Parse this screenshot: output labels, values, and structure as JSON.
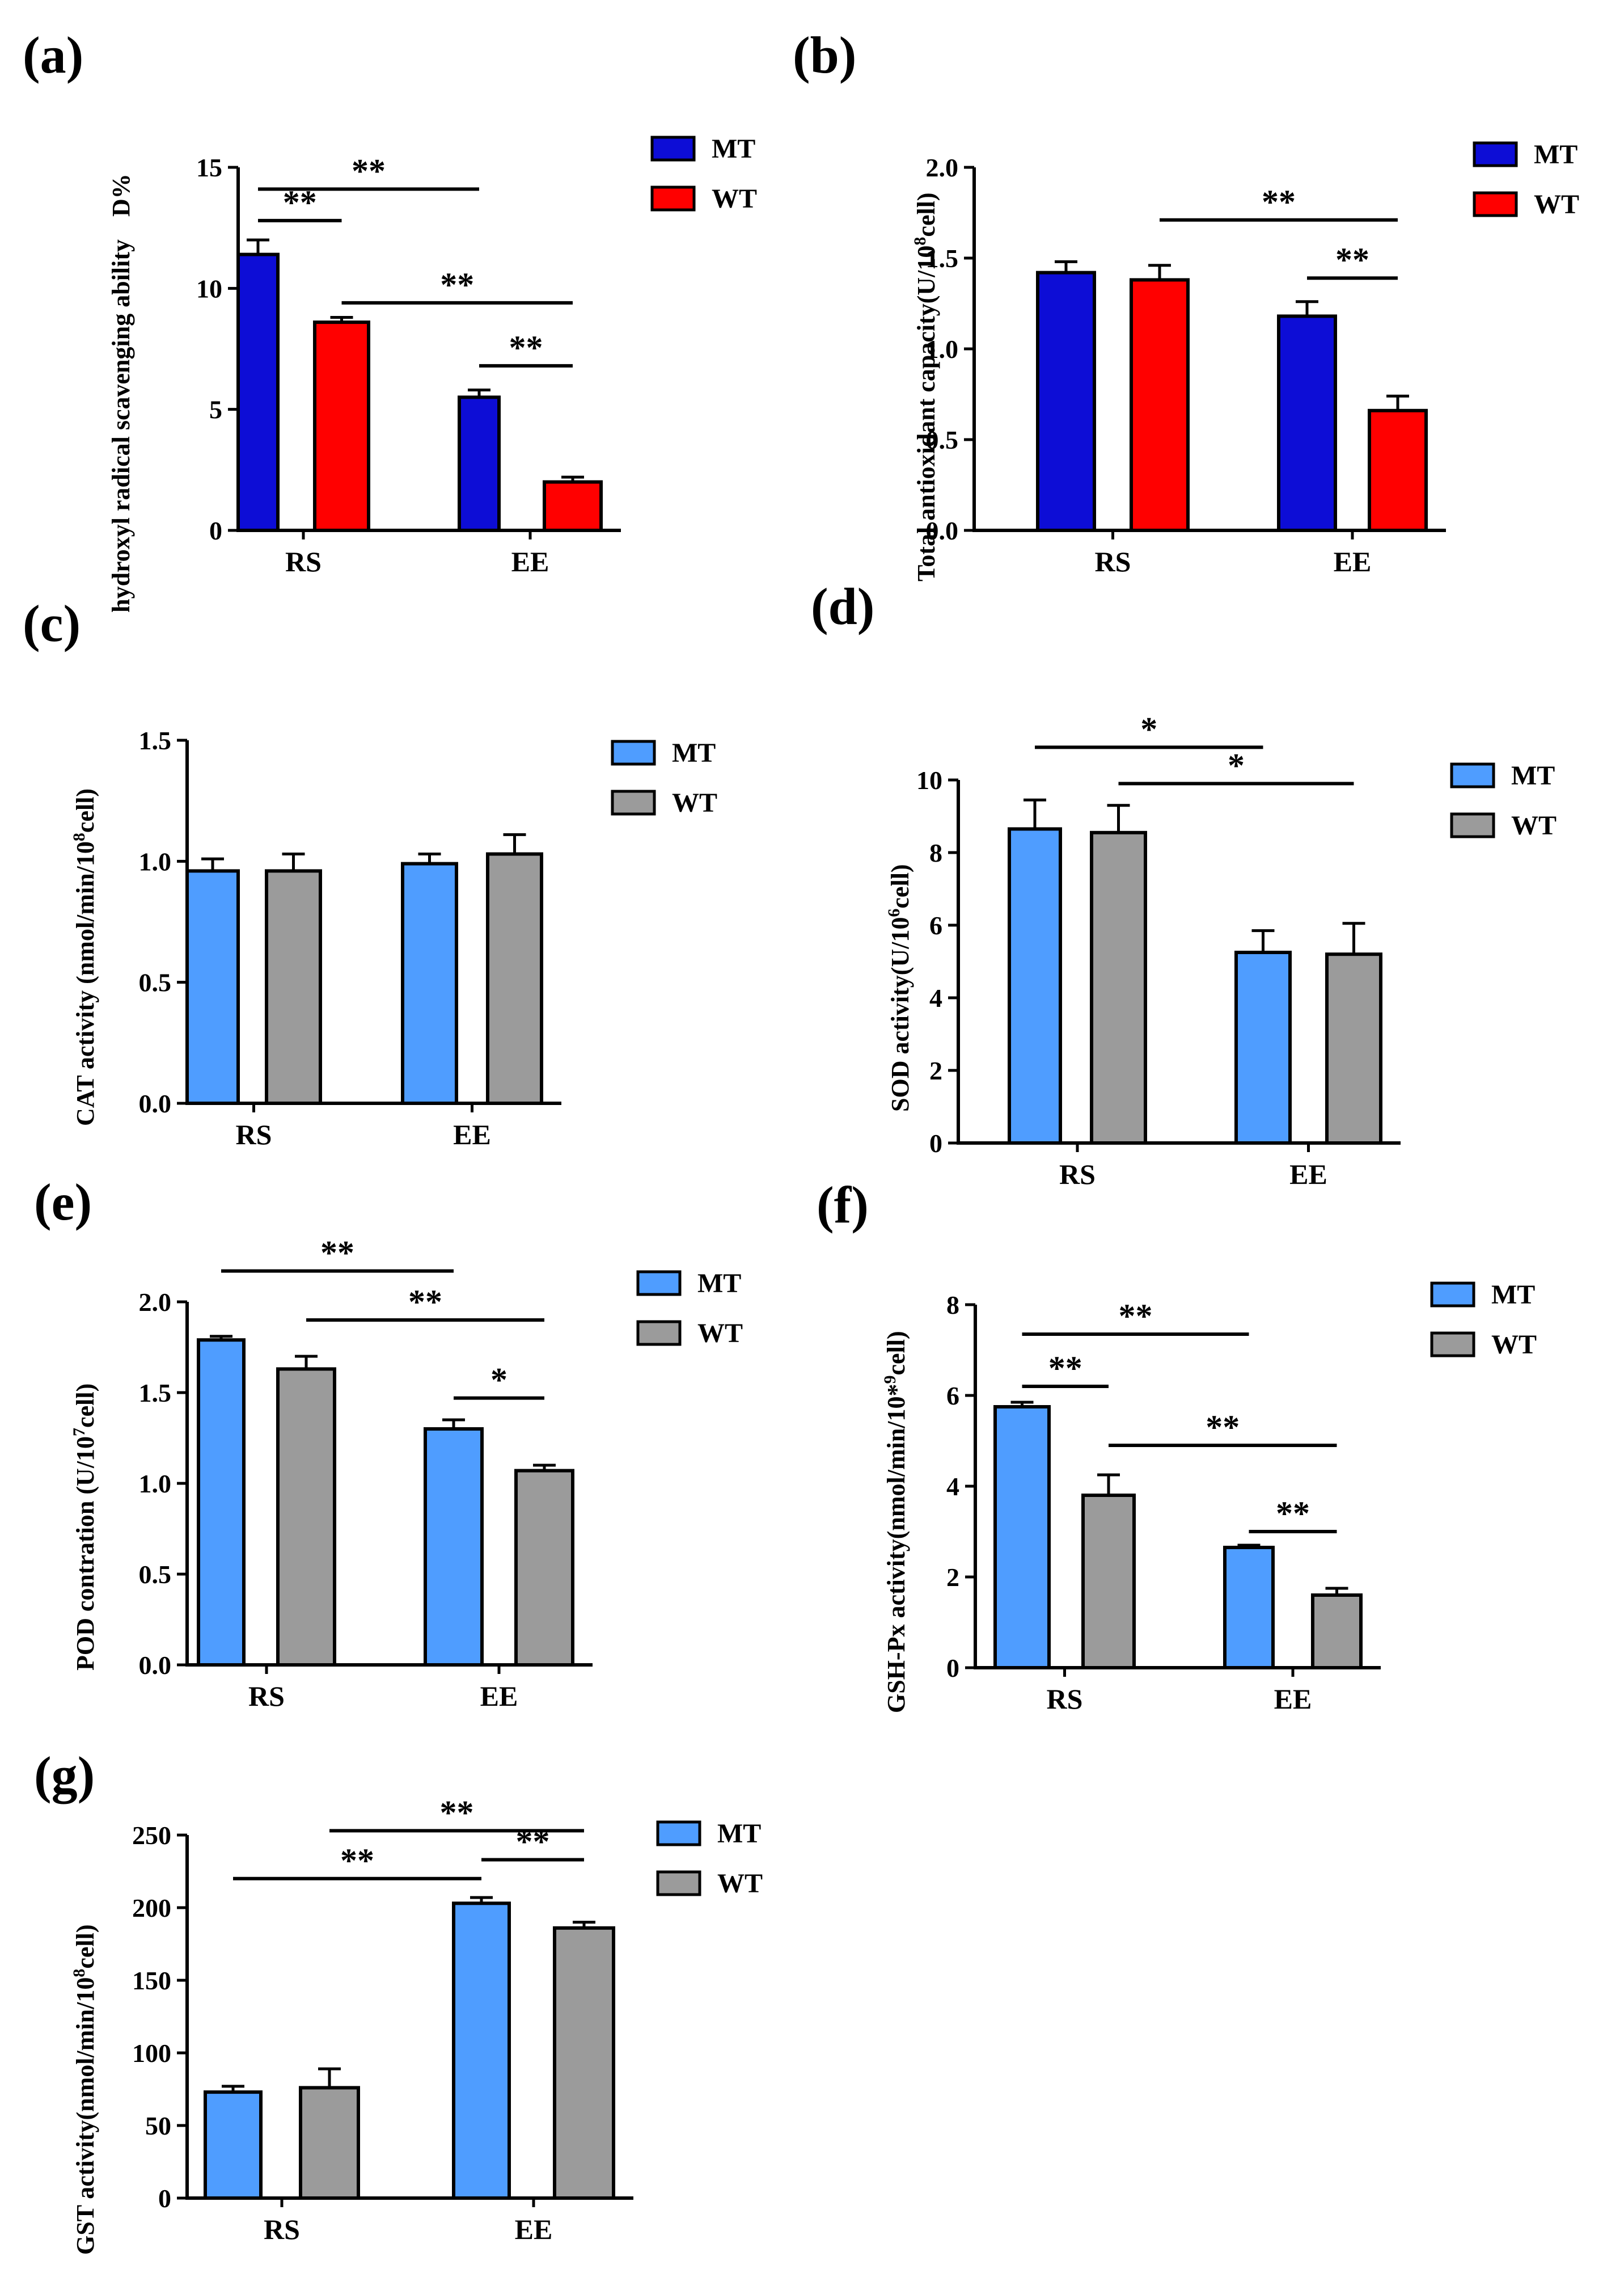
{
  "chart_data": [
    {
      "panel": "(a)",
      "type": "bar",
      "ylabel_main": "hydroxyl radical scavenging ability",
      "ylabel_unit": "D%",
      "ylim": [
        0,
        15
      ],
      "yticks": [
        "0",
        "5",
        "10",
        "15"
      ],
      "categories": [
        "RS",
        "EE"
      ],
      "series": [
        {
          "name": "MT",
          "color": "#0d0dd6",
          "values": [
            11.4,
            5.5
          ],
          "errors": [
            0.6,
            0.3
          ]
        },
        {
          "name": "WT",
          "color": "#ff0000",
          "values": [
            8.6,
            2.0
          ],
          "errors": [
            0.2,
            0.2
          ]
        }
      ],
      "significance": [
        {
          "label": "**",
          "x1": [
            0,
            0
          ],
          "x2": [
            1,
            0
          ],
          "y": 14.1
        },
        {
          "label": "**",
          "x1": [
            0,
            0
          ],
          "x2": [
            0,
            1
          ],
          "y": 12.8
        },
        {
          "label": "**",
          "x1": [
            0,
            1
          ],
          "x2": [
            1,
            1
          ],
          "y": 9.4
        },
        {
          "label": "**",
          "x1": [
            1,
            0
          ],
          "x2": [
            1,
            1
          ],
          "y": 6.8
        }
      ]
    },
    {
      "panel": "(b)",
      "type": "bar",
      "ylabel_main": "Total antioxidant capacity(U/10",
      "ylabel_sup": "8",
      "ylabel_after": "cell)",
      "ylim": [
        0,
        2.0
      ],
      "yticks": [
        "0.0",
        "0.5",
        "1.0",
        "1.5",
        "2.0"
      ],
      "categories": [
        "RS",
        "EE"
      ],
      "series": [
        {
          "name": "MT",
          "color": "#0d0dd6",
          "values": [
            1.42,
            1.18
          ],
          "errors": [
            0.06,
            0.08
          ]
        },
        {
          "name": "WT",
          "color": "#ff0000",
          "values": [
            1.38,
            0.66
          ],
          "errors": [
            0.08,
            0.08
          ]
        }
      ],
      "significance": [
        {
          "label": "**",
          "x1": [
            0,
            1
          ],
          "x2": [
            1,
            1
          ],
          "y": 1.71
        },
        {
          "label": "**",
          "x1": [
            1,
            0
          ],
          "x2": [
            1,
            1
          ],
          "y": 1.39
        }
      ]
    },
    {
      "panel": "(c)",
      "type": "bar",
      "ylabel_main": "CAT activity (nmol/min/10",
      "ylabel_sup": "8",
      "ylabel_after": "cell)",
      "ylim": [
        0,
        1.5
      ],
      "yticks": [
        "0.0",
        "0.5",
        "1.0",
        "1.5"
      ],
      "categories": [
        "RS",
        "EE"
      ],
      "series": [
        {
          "name": "MT",
          "color": "#4f9dff",
          "values": [
            0.96,
            0.99
          ],
          "errors": [
            0.05,
            0.04
          ]
        },
        {
          "name": "WT",
          "color": "#9b9b9b",
          "values": [
            0.96,
            1.03
          ],
          "errors": [
            0.07,
            0.08
          ]
        }
      ],
      "significance": []
    },
    {
      "panel": "(d)",
      "type": "bar",
      "ylabel_main": "SOD activity(U/10",
      "ylabel_sup": "6",
      "ylabel_after": "cell)",
      "ylim": [
        0,
        10
      ],
      "yticks": [
        "0",
        "2",
        "4",
        "6",
        "8",
        "10"
      ],
      "categories": [
        "RS",
        "EE"
      ],
      "series": [
        {
          "name": "MT",
          "color": "#4f9dff",
          "values": [
            8.65,
            5.25
          ],
          "errors": [
            0.8,
            0.6
          ]
        },
        {
          "name": "WT",
          "color": "#9b9b9b",
          "values": [
            8.55,
            5.2
          ],
          "errors": [
            0.75,
            0.85
          ]
        }
      ],
      "significance": [
        {
          "label": "*",
          "x1": [
            0,
            0
          ],
          "x2": [
            1,
            0
          ],
          "y": 10.9
        },
        {
          "label": "*",
          "x1": [
            0,
            1
          ],
          "x2": [
            1,
            1
          ],
          "y": 9.9
        }
      ]
    },
    {
      "panel": "(e)",
      "type": "bar",
      "ylabel_main": "POD contration (U/10",
      "ylabel_sup": "7",
      "ylabel_after": "cell)",
      "ylim": [
        0,
        2.0
      ],
      "yticks": [
        "0.0",
        "0.5",
        "1.0",
        "1.5",
        "2.0"
      ],
      "categories": [
        "RS",
        "EE"
      ],
      "series": [
        {
          "name": "MT",
          "color": "#4f9dff",
          "values": [
            1.79,
            1.3
          ],
          "errors": [
            0.02,
            0.05
          ]
        },
        {
          "name": "WT",
          "color": "#9b9b9b",
          "values": [
            1.63,
            1.07
          ],
          "errors": [
            0.07,
            0.03
          ]
        }
      ],
      "significance": [
        {
          "label": "**",
          "x1": [
            0,
            0
          ],
          "x2": [
            1,
            0
          ],
          "y": 2.17
        },
        {
          "label": "**",
          "x1": [
            0,
            1
          ],
          "x2": [
            1,
            1
          ],
          "y": 1.9
        },
        {
          "label": "*",
          "x1": [
            1,
            0
          ],
          "x2": [
            1,
            1
          ],
          "y": 1.47
        }
      ]
    },
    {
      "panel": "(f)",
      "type": "bar",
      "ylabel_main": "GSH-Px activity(nmol/min/10*",
      "ylabel_sup": "9",
      "ylabel_after": "cell)",
      "ylim": [
        0,
        8
      ],
      "yticks": [
        "0",
        "2",
        "4",
        "6",
        "8"
      ],
      "categories": [
        "RS",
        "EE"
      ],
      "series": [
        {
          "name": "MT",
          "color": "#4f9dff",
          "values": [
            5.75,
            2.65
          ],
          "errors": [
            0.1,
            0.05
          ]
        },
        {
          "name": "WT",
          "color": "#9b9b9b",
          "values": [
            3.8,
            1.6
          ],
          "errors": [
            0.45,
            0.15
          ]
        }
      ],
      "significance": [
        {
          "label": "**",
          "x1": [
            0,
            0
          ],
          "x2": [
            1,
            0
          ],
          "y": 7.35
        },
        {
          "label": "**",
          "x1": [
            0,
            0
          ],
          "x2": [
            0,
            1
          ],
          "y": 6.2
        },
        {
          "label": "**",
          "x1": [
            0,
            1
          ],
          "x2": [
            1,
            1
          ],
          "y": 4.9
        },
        {
          "label": "**",
          "x1": [
            1,
            0
          ],
          "x2": [
            1,
            1
          ],
          "y": 3.0
        }
      ]
    },
    {
      "panel": "(g)",
      "type": "bar",
      "ylabel_main": "GST activity(nmol/min/10",
      "ylabel_sup": "8",
      "ylabel_after": "cell)",
      "ylim": [
        0,
        250
      ],
      "yticks": [
        "0",
        "50",
        "100",
        "150",
        "200",
        "250"
      ],
      "categories": [
        "RS",
        "EE"
      ],
      "series": [
        {
          "name": "MT",
          "color": "#4f9dff",
          "values": [
            73,
            203
          ],
          "errors": [
            4,
            4
          ]
        },
        {
          "name": "WT",
          "color": "#9b9b9b",
          "values": [
            76,
            186
          ],
          "errors": [
            13,
            4
          ]
        }
      ],
      "significance": [
        {
          "label": "**",
          "x1": [
            0,
            1
          ],
          "x2": [
            1,
            1
          ],
          "y": 253
        },
        {
          "label": "**",
          "x1": [
            1,
            0
          ],
          "x2": [
            1,
            1
          ],
          "y": 233
        },
        {
          "label": "**",
          "x1": [
            0,
            0
          ],
          "x2": [
            1,
            0
          ],
          "y": 220
        }
      ]
    }
  ]
}
